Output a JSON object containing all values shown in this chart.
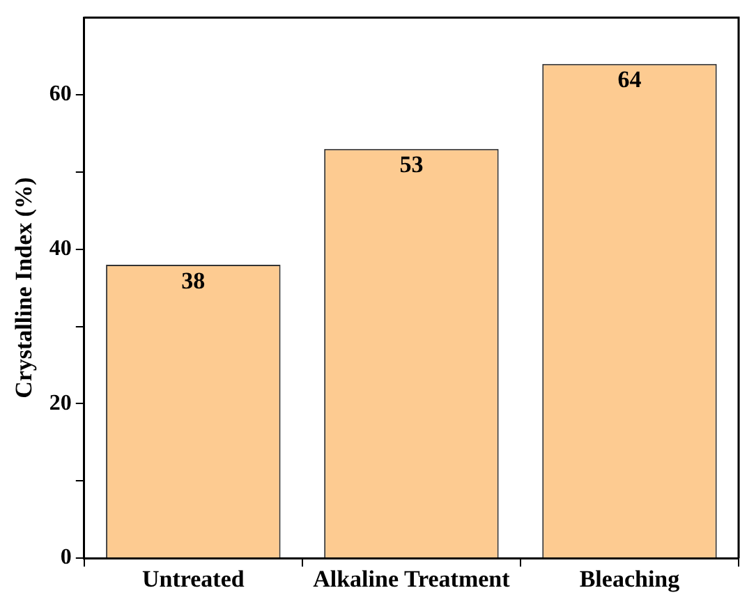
{
  "chart_data": {
    "type": "bar",
    "ylabel": "Crystalline Index (%)",
    "categories": [
      "Untreated",
      "Alkaline Treatment",
      "Bleaching"
    ],
    "values": [
      38,
      53,
      64
    ],
    "color": "#fdcb91",
    "ylim": [
      0,
      70
    ],
    "yticks": [
      0,
      {
        "value": 10,
        "label": null
      },
      20,
      {
        "value": 30,
        "label": null
      },
      40,
      {
        "value": 50,
        "label": null
      },
      60
    ],
    "grid": false,
    "legend": false,
    "data_labels": true
  }
}
